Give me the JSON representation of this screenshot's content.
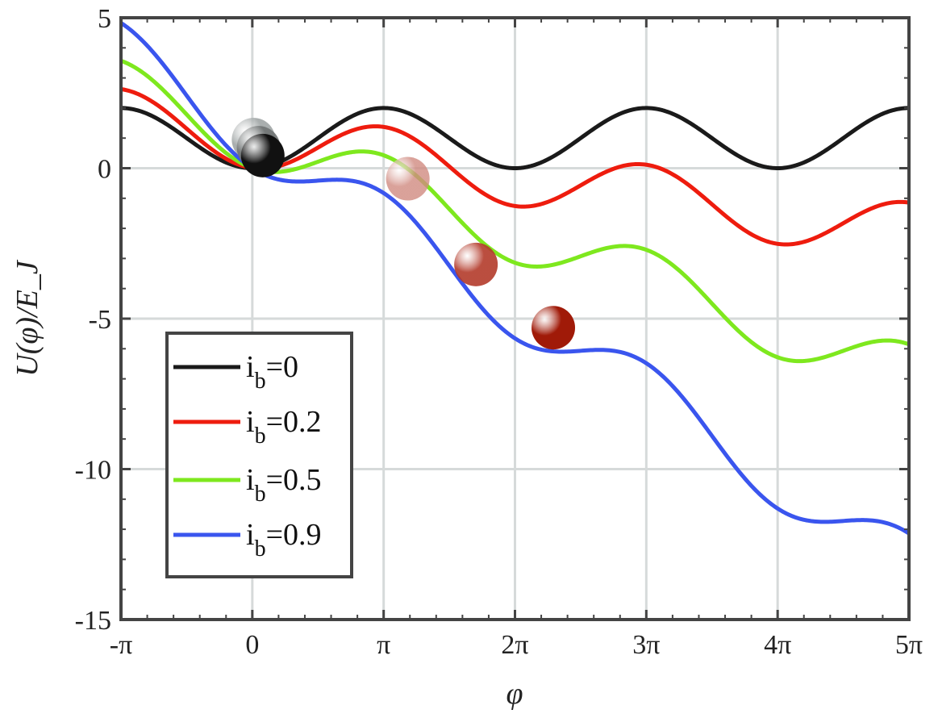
{
  "chart_data": {
    "type": "line",
    "xlabel": "φ",
    "ylabel": "U(φ)/E_J",
    "xlim_pi": [
      -1,
      5
    ],
    "ylim": [
      -15,
      5
    ],
    "xticks": [
      {
        "value_pi": -1,
        "label": "-π"
      },
      {
        "value_pi": 0,
        "label": "0"
      },
      {
        "value_pi": 1,
        "label": "π"
      },
      {
        "value_pi": 2,
        "label": "2π"
      },
      {
        "value_pi": 3,
        "label": "3π"
      },
      {
        "value_pi": 4,
        "label": "4π"
      },
      {
        "value_pi": 5,
        "label": "5π"
      }
    ],
    "yticks": [
      {
        "value": 5,
        "label": "5"
      },
      {
        "value": 0,
        "label": "0"
      },
      {
        "value": -5,
        "label": "-5"
      },
      {
        "value": -10,
        "label": "-10"
      },
      {
        "value": -15,
        "label": "-15"
      }
    ],
    "grid": true,
    "legend_position": "bottom-left",
    "series": [
      {
        "name": "i_b=0",
        "label_main": "i",
        "label_sub": "b",
        "label_value": "=0",
        "ib": 0,
        "color": "#1a1a1a"
      },
      {
        "name": "i_b=0.2",
        "label_main": "i",
        "label_sub": "b",
        "label_value": "=0.2",
        "ib": 0.2,
        "color": "#ee1c0e"
      },
      {
        "name": "i_b=0.5",
        "label_main": "i",
        "label_sub": "b",
        "label_value": "=0.5",
        "ib": 0.5,
        "color": "#7ee81e"
      },
      {
        "name": "i_b=0.9",
        "label_main": "i",
        "label_sub": "b",
        "label_value": "=0.9",
        "ib": 0.9,
        "color": "#3a55ee"
      }
    ],
    "balls": [
      {
        "x": 0.03,
        "y": 0.95,
        "color": "#9aa0a0",
        "opacity": 0.85
      },
      {
        "x": 0.15,
        "y": 0.68,
        "color": "#6f7373",
        "opacity": 0.9
      },
      {
        "x": 0.25,
        "y": 0.42,
        "color": "#111111",
        "opacity": 1
      },
      {
        "x": 3.72,
        "y": -0.35,
        "color": "#d08a80",
        "opacity": 0.8
      },
      {
        "x": 5.35,
        "y": -3.2,
        "color": "#b33a2a",
        "opacity": 0.9
      },
      {
        "x": 7.2,
        "y": -5.3,
        "color": "#a01a08",
        "opacity": 1
      }
    ]
  }
}
